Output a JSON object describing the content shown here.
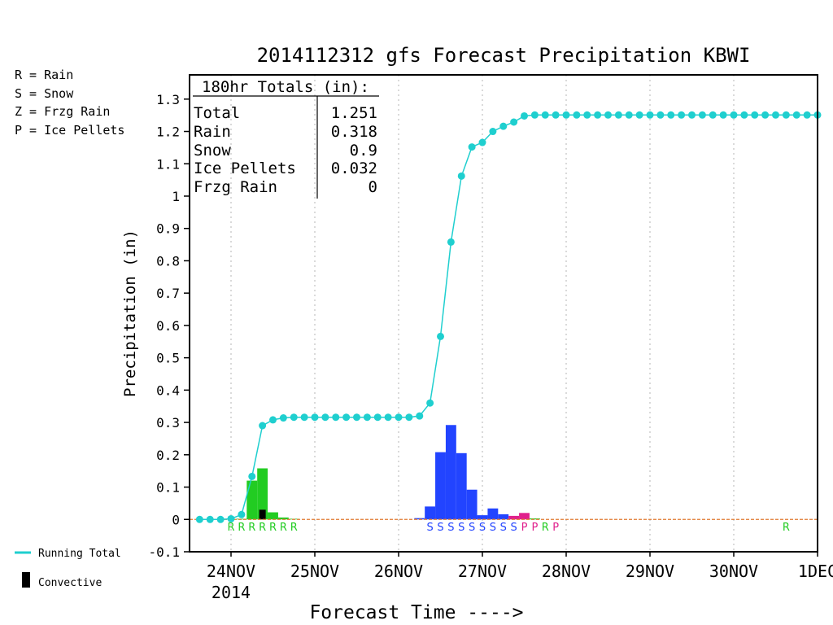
{
  "chart_data": {
    "type": "bar",
    "title": "2014112312 gfs Forecast Precipitation KBWI",
    "xlabel": "Forecast Time ---->",
    "ylabel": "Precipitation (in)",
    "ylim": [
      -0.1,
      1.375
    ],
    "yticks": [
      "-0.1",
      "0",
      "0.1",
      "0.2",
      "0.3",
      "0.4",
      "0.5",
      "0.6",
      "0.7",
      "0.8",
      "0.9",
      "1",
      "1.1",
      "1.2",
      "1.3"
    ],
    "x_unit": "days after 24NOV 00Z",
    "xlim": [
      -0.4,
      7.0
    ],
    "xticks": [
      {
        "x": 0,
        "label": "24NOV",
        "sublabel": "2014"
      },
      {
        "x": 1,
        "label": "25NOV"
      },
      {
        "x": 2,
        "label": "26NOV"
      },
      {
        "x": 3,
        "label": "27NOV"
      },
      {
        "x": 4,
        "label": "28NOV"
      },
      {
        "x": 5,
        "label": "29NOV"
      },
      {
        "x": 6,
        "label": "30NOV"
      },
      {
        "x": 7,
        "label": "1DEC"
      }
    ],
    "grid": "vertical dotted",
    "totals_box": {
      "header": "180hr Totals (in):",
      "rows": [
        {
          "label": "Total",
          "value": "1.251"
        },
        {
          "label": "Rain",
          "value": "0.318"
        },
        {
          "label": "Snow",
          "value": "0.9"
        },
        {
          "label": "Ice Pellets",
          "value": "0.032"
        },
        {
          "label": "Frzg Rain",
          "value": "0"
        }
      ]
    },
    "type_legend": [
      {
        "text": "R = Rain",
        "color": "#22cc22"
      },
      {
        "text": "S = Snow",
        "color": "#2244ff"
      },
      {
        "text": "Z = Frzg Rain",
        "color": "#f08c30"
      },
      {
        "text": "P = Ice Pellets",
        "color": "#e0208c"
      }
    ],
    "line_legend": [
      {
        "text": "Running Total",
        "color": "#1fcfcf",
        "kind": "line"
      },
      {
        "text": "Convective",
        "color": "#000000",
        "kind": "bar"
      }
    ],
    "bar_width_days": 0.125,
    "bars": [
      {
        "x": 0.125,
        "value": 0.002,
        "type": "R",
        "color": "#22cc22"
      },
      {
        "x": 0.25,
        "value": 0.12,
        "type": "R",
        "color": "#22cc22"
      },
      {
        "x": 0.375,
        "value": 0.158,
        "type": "R",
        "color": "#22cc22"
      },
      {
        "x": 0.5,
        "value": 0.022,
        "type": "R",
        "color": "#22cc22"
      },
      {
        "x": 0.625,
        "value": 0.006,
        "type": "R",
        "color": "#22cc22"
      },
      {
        "x": 0.75,
        "value": 0.002,
        "type": "R",
        "color": "#22cc22"
      },
      {
        "x": 2.25,
        "value": 0.004,
        "type": "S",
        "color": "#2244ff"
      },
      {
        "x": 2.375,
        "value": 0.04,
        "type": "S",
        "color": "#2244ff"
      },
      {
        "x": 2.5,
        "value": 0.208,
        "type": "S",
        "color": "#2244ff"
      },
      {
        "x": 2.625,
        "value": 0.292,
        "type": "S",
        "color": "#2244ff"
      },
      {
        "x": 2.75,
        "value": 0.205,
        "type": "S",
        "color": "#2244ff"
      },
      {
        "x": 2.875,
        "value": 0.092,
        "type": "S",
        "color": "#2244ff"
      },
      {
        "x": 3.0,
        "value": 0.013,
        "type": "S",
        "color": "#2244ff"
      },
      {
        "x": 3.125,
        "value": 0.034,
        "type": "S",
        "color": "#2244ff"
      },
      {
        "x": 3.25,
        "value": 0.016,
        "type": "S",
        "color": "#2244ff"
      },
      {
        "x": 3.375,
        "value": 0.011,
        "type": "P",
        "color": "#e0208c"
      },
      {
        "x": 3.5,
        "value": 0.02,
        "type": "P",
        "color": "#e0208c"
      },
      {
        "x": 3.625,
        "value": 0.003,
        "type": "R",
        "color": "#22cc22"
      }
    ],
    "convective": [
      {
        "x": 0.375,
        "value": 0.03
      }
    ],
    "type_markers": [
      {
        "x": 0.0,
        "letter": "R",
        "color": "#22cc22"
      },
      {
        "x": 0.125,
        "letter": "R",
        "color": "#22cc22"
      },
      {
        "x": 0.25,
        "letter": "R",
        "color": "#22cc22"
      },
      {
        "x": 0.375,
        "letter": "R",
        "color": "#22cc22"
      },
      {
        "x": 0.5,
        "letter": "R",
        "color": "#22cc22"
      },
      {
        "x": 0.625,
        "letter": "R",
        "color": "#22cc22"
      },
      {
        "x": 0.75,
        "letter": "R",
        "color": "#22cc22"
      },
      {
        "x": 2.375,
        "letter": "S",
        "color": "#2244ff"
      },
      {
        "x": 2.5,
        "letter": "S",
        "color": "#2244ff"
      },
      {
        "x": 2.625,
        "letter": "S",
        "color": "#2244ff"
      },
      {
        "x": 2.75,
        "letter": "S",
        "color": "#2244ff"
      },
      {
        "x": 2.875,
        "letter": "S",
        "color": "#2244ff"
      },
      {
        "x": 3.0,
        "letter": "S",
        "color": "#2244ff"
      },
      {
        "x": 3.125,
        "letter": "S",
        "color": "#2244ff"
      },
      {
        "x": 3.25,
        "letter": "S",
        "color": "#2244ff"
      },
      {
        "x": 3.375,
        "letter": "S",
        "color": "#2244ff"
      },
      {
        "x": 3.5,
        "letter": "P",
        "color": "#e0208c"
      },
      {
        "x": 3.625,
        "letter": "P",
        "color": "#e0208c"
      },
      {
        "x": 3.75,
        "letter": "R",
        "color": "#22cc22"
      },
      {
        "x": 3.875,
        "letter": "P",
        "color": "#e0208c"
      },
      {
        "x": 6.625,
        "letter": "R",
        "color": "#22cc22"
      }
    ],
    "running_total": {
      "name": "Running Total",
      "color": "#1fcfcf",
      "x": [
        -0.375,
        -0.25,
        -0.125,
        0,
        0.125,
        0.25,
        0.375,
        0.5,
        0.625,
        0.75,
        0.875,
        1,
        1.125,
        1.25,
        1.375,
        1.5,
        1.625,
        1.75,
        1.875,
        2,
        2.125,
        2.25,
        2.375,
        2.5,
        2.625,
        2.75,
        2.875,
        3,
        3.125,
        3.25,
        3.375,
        3.5,
        3.625,
        3.75,
        3.875,
        4,
        4.125,
        4.25,
        4.375,
        4.5,
        4.625,
        4.75,
        4.875,
        5,
        5.125,
        5.25,
        5.375,
        5.5,
        5.625,
        5.75,
        5.875,
        6,
        6.125,
        6.25,
        6.375,
        6.5,
        6.625,
        6.75,
        6.875,
        7.0
      ],
      "y": [
        0,
        0,
        0,
        0.002,
        0.015,
        0.133,
        0.29,
        0.308,
        0.314,
        0.316,
        0.316,
        0.316,
        0.316,
        0.316,
        0.316,
        0.316,
        0.316,
        0.316,
        0.316,
        0.316,
        0.316,
        0.32,
        0.36,
        0.566,
        0.858,
        1.062,
        1.152,
        1.166,
        1.2,
        1.216,
        1.229,
        1.248,
        1.251,
        1.251,
        1.251,
        1.251,
        1.251,
        1.251,
        1.251,
        1.251,
        1.251,
        1.251,
        1.251,
        1.251,
        1.251,
        1.251,
        1.251,
        1.251,
        1.251,
        1.251,
        1.251,
        1.251,
        1.251,
        1.251,
        1.251,
        1.251,
        1.251,
        1.251,
        1.251,
        1.251
      ]
    }
  }
}
